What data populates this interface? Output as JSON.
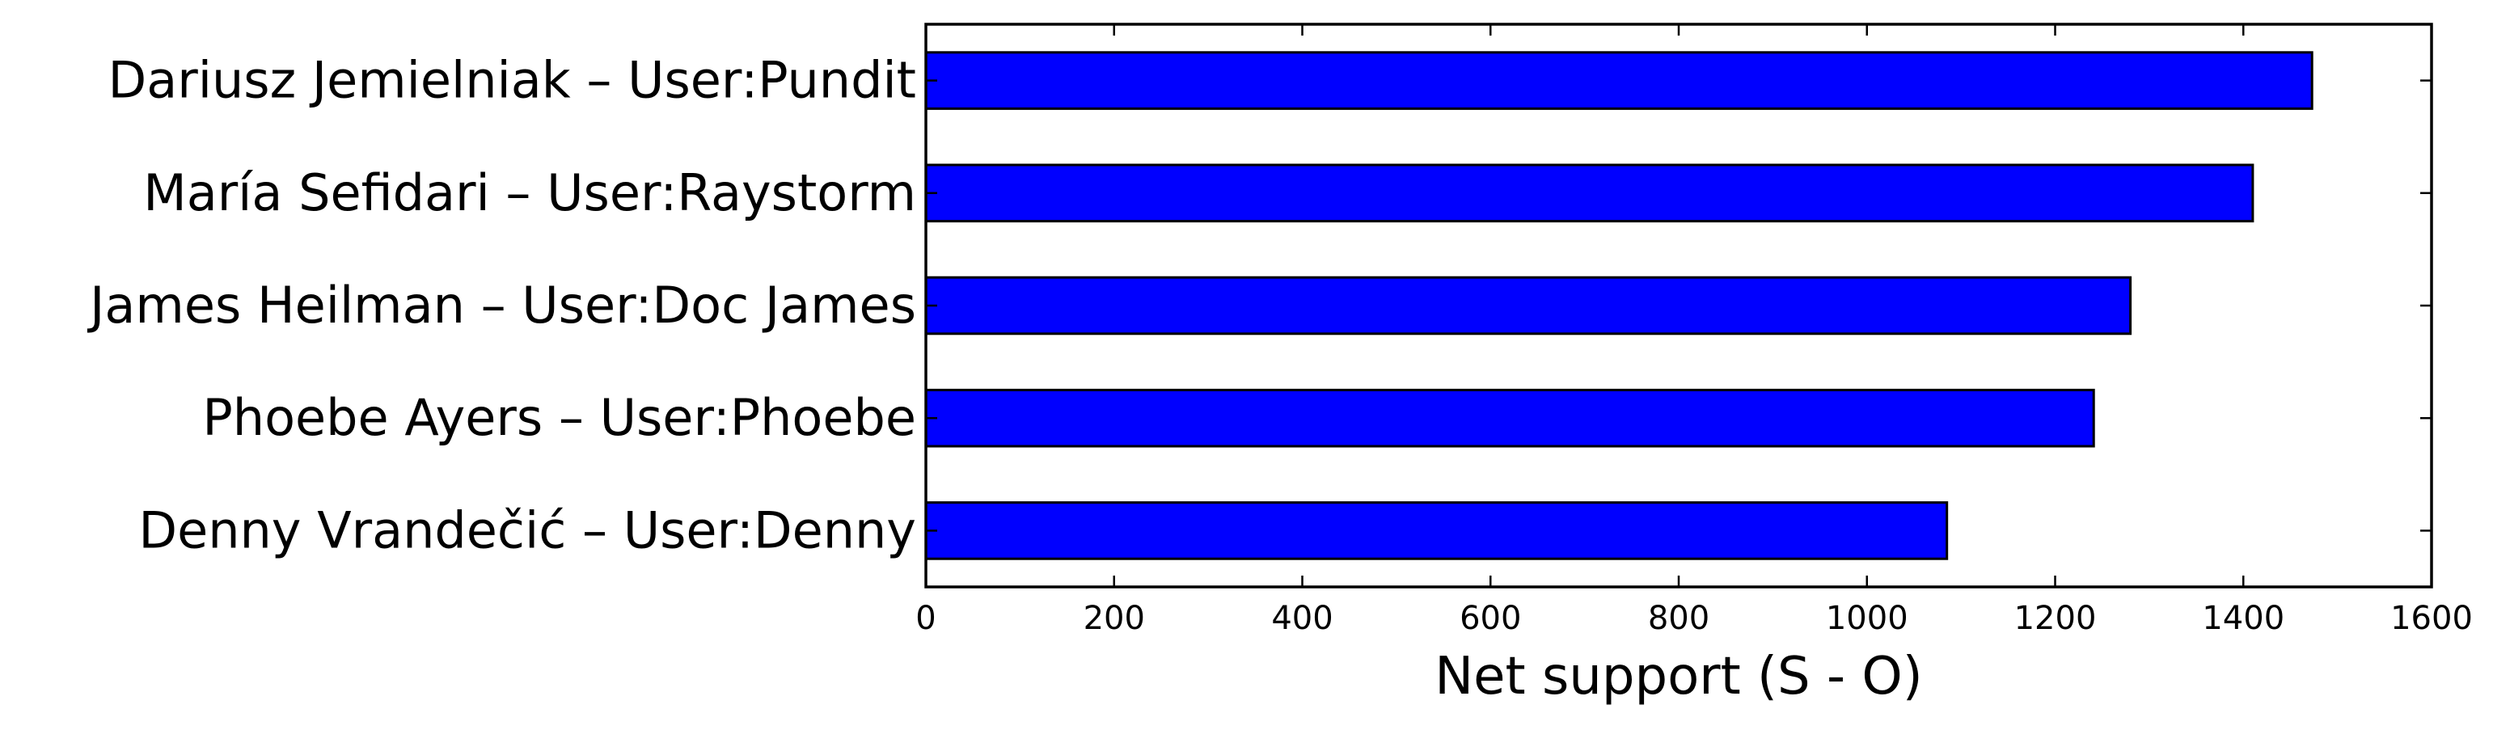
{
  "chart_data": {
    "type": "bar",
    "orientation": "horizontal",
    "categories": [
      "Dariusz Jemielniak – User:Pundit",
      "María Sefidari – User:Raystorm",
      "James Heilman – User:Doc James",
      "Phoebe Ayers – User:Phoebe",
      "Denny Vrandečić – User:Denny"
    ],
    "values": [
      1473,
      1410,
      1280,
      1241,
      1085
    ],
    "title": "",
    "xlabel": "Net support (S - O)",
    "ylabel": "",
    "xlim": [
      0,
      1600
    ],
    "xticks": [
      "0",
      "200",
      "400",
      "600",
      "800",
      "1000",
      "1200",
      "1400",
      "1600"
    ],
    "grid": false,
    "bar_color": "#0000ff"
  }
}
